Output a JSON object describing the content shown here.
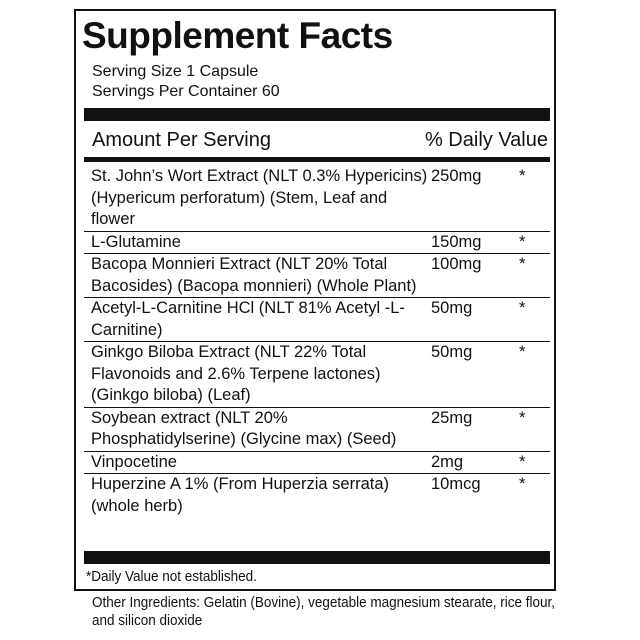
{
  "title": "Supplement Facts",
  "serving_size": "Serving Size 1 Capsule",
  "servings_per_container": "Servings Per Container 60",
  "header": {
    "amount": "Amount Per Serving",
    "daily_value": "% Daily Value"
  },
  "ingredients": [
    {
      "name": "St. John’s Wort Extract (NLT 0.3% Hypericins) (Hypericum perforatum) (Stem, Leaf and flower",
      "amount": "250mg",
      "dv": "*"
    },
    {
      "name": "L-Glutamine",
      "amount": "150mg",
      "dv": "*"
    },
    {
      "name": "Bacopa Monnieri Extract (NLT 20% Total Bacosides) (Bacopa monnieri) (Whole Plant)",
      "amount": "100mg",
      "dv": "*"
    },
    {
      "name": "Acetyl-L-Carnitine HCl (NLT 81% Acetyl -L-Carnitine)",
      "amount": "50mg",
      "dv": "*"
    },
    {
      "name": "Ginkgo Biloba Extract (NLT 22% Total Flavonoids and 2.6% Terpene lactones) (Ginkgo biloba) (Leaf)",
      "amount": "50mg",
      "dv": "*"
    },
    {
      "name": "Soybean extract (NLT 20% Phosphatidylserine) (Glycine max) (Seed)",
      "amount": "25mg",
      "dv": "*"
    },
    {
      "name": "Vinpocetine",
      "amount": "2mg",
      "dv": "*"
    },
    {
      "name": "Huperzine A 1% (From Huperzia serrata) (whole herb)",
      "amount": "10mcg",
      "dv": "*"
    }
  ],
  "footnote": "*Daily Value not established.",
  "other_ingredients": "Other Ingredients: Gelatin (Bovine), vegetable magnesium stearate, rice flour, and silicon dioxide"
}
